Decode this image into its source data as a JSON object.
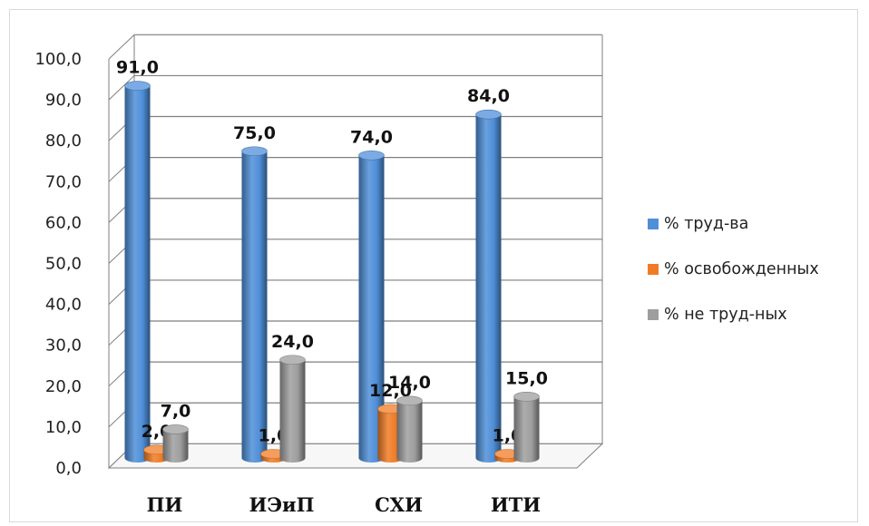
{
  "chart_data": {
    "type": "bar",
    "title": "",
    "xlabel": "",
    "ylabel": "",
    "categories": [
      "ПИ",
      "ИЭиП",
      "СХИ",
      "ИТИ"
    ],
    "series": [
      {
        "name": "% труд-ва",
        "color": "#4f8fd8",
        "values": [
          91.0,
          75.0,
          74.0,
          84.0
        ],
        "value_labels": [
          "91,0",
          "75,0",
          "74,0",
          "84,0"
        ]
      },
      {
        "name": "% освобожденных",
        "color": "#f07c25",
        "values": [
          2.0,
          1.0,
          12.0,
          1.0
        ],
        "value_labels": [
          "2,0",
          "1,0",
          "12,0",
          "1,0"
        ]
      },
      {
        "name": "% не труд-ных",
        "color": "#9e9e9e",
        "values": [
          7.0,
          24.0,
          14.0,
          15.0
        ],
        "value_labels": [
          "7,0",
          "24,0",
          "14,0",
          "15,0"
        ]
      }
    ],
    "ylim": [
      0,
      100
    ],
    "yticks": [
      "0,0",
      "10,0",
      "20,0",
      "30,0",
      "40,0",
      "50,0",
      "60,0",
      "70,0",
      "80,0",
      "90,0",
      "100,0"
    ],
    "grid": true,
    "legend_position": "right",
    "style": "3d-cylinder"
  }
}
